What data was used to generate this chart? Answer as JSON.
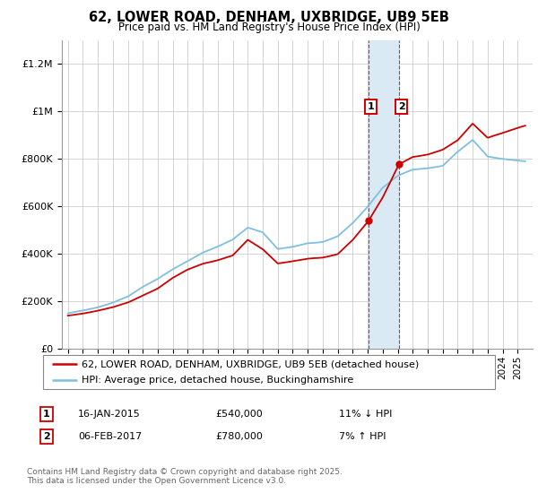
{
  "title": "62, LOWER ROAD, DENHAM, UXBRIDGE, UB9 5EB",
  "subtitle": "Price paid vs. HM Land Registry's House Price Index (HPI)",
  "legend_line1": "62, LOWER ROAD, DENHAM, UXBRIDGE, UB9 5EB (detached house)",
  "legend_line2": "HPI: Average price, detached house, Buckinghamshire",
  "annotation1_date": "16-JAN-2015",
  "annotation1_price": "£540,000",
  "annotation1_hpi": "11% ↓ HPI",
  "annotation2_date": "06-FEB-2017",
  "annotation2_price": "£780,000",
  "annotation2_hpi": "7% ↑ HPI",
  "footer": "Contains HM Land Registry data © Crown copyright and database right 2025.\nThis data is licensed under the Open Government Licence v3.0.",
  "hpi_color": "#7fbfdf",
  "price_color": "#cc0000",
  "shade_color": "#daeaf5",
  "annotation_box_color": "#cc0000",
  "ylim": [
    0,
    1300000
  ],
  "yticks": [
    0,
    200000,
    400000,
    600000,
    800000,
    1000000,
    1200000
  ],
  "ytick_labels": [
    "£0",
    "£200K",
    "£400K",
    "£600K",
    "£800K",
    "£1M",
    "£1.2M"
  ],
  "sale1_x": 2015.04,
  "sale1_y": 540000,
  "sale2_x": 2017.09,
  "sale2_y": 780000,
  "xmin": 1995,
  "xmax": 2025.5,
  "t_hpi": [
    1995,
    1996,
    1997,
    1998,
    1999,
    2000,
    2001,
    2002,
    2003,
    2004,
    2005,
    2006,
    2007,
    2008,
    2009,
    2010,
    2011,
    2012,
    2013,
    2014,
    2015,
    2016,
    2017,
    2018,
    2019,
    2020,
    2021,
    2022,
    2023,
    2024,
    2025.5
  ],
  "v_hpi": [
    150000,
    162000,
    175000,
    195000,
    220000,
    260000,
    295000,
    335000,
    370000,
    405000,
    430000,
    460000,
    510000,
    490000,
    420000,
    430000,
    445000,
    450000,
    475000,
    530000,
    600000,
    680000,
    730000,
    755000,
    760000,
    770000,
    830000,
    880000,
    810000,
    800000,
    790000
  ],
  "t_pp": [
    1995,
    1996,
    1997,
    1998,
    1999,
    2000,
    2001,
    2002,
    2003,
    2004,
    2005,
    2006,
    2007,
    2008,
    2009,
    2010,
    2011,
    2012,
    2013,
    2014,
    2015.04,
    2016,
    2017.09,
    2018,
    2019,
    2020,
    2021,
    2022,
    2023,
    2024,
    2025.5
  ],
  "v_pp": [
    140000,
    148000,
    160000,
    175000,
    195000,
    225000,
    255000,
    300000,
    335000,
    360000,
    375000,
    395000,
    460000,
    420000,
    360000,
    370000,
    380000,
    385000,
    400000,
    460000,
    540000,
    640000,
    780000,
    810000,
    820000,
    840000,
    880000,
    950000,
    890000,
    910000,
    940000
  ]
}
